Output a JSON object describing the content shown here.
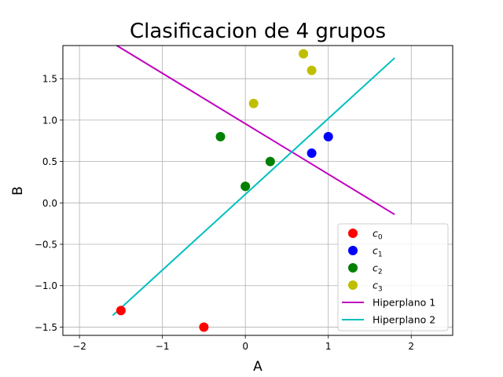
{
  "chart_data": {
    "type": "scatter",
    "title": "Clasificacion de 4 grupos",
    "xlabel": "A",
    "ylabel": "B",
    "xlim": [
      -2.2,
      2.5
    ],
    "ylim": [
      -1.6,
      1.9
    ],
    "xticks": [
      -2,
      -1,
      0,
      1,
      2
    ],
    "xtick_labels": [
      "−2",
      "−1",
      "0",
      "1",
      "2"
    ],
    "yticks": [
      -1.5,
      -1.0,
      -0.5,
      0.0,
      0.5,
      1.0,
      1.5
    ],
    "ytick_labels": [
      "−1.5",
      "−1.0",
      "−0.5",
      "0.0",
      "0.5",
      "1.0",
      "1.5"
    ],
    "grid": true,
    "legend_position": "lower-right",
    "series": [
      {
        "name": "c",
        "subscript": "0",
        "kind": "points",
        "color": "#ff0000",
        "points": [
          [
            -1.5,
            -1.3
          ],
          [
            -0.5,
            -1.5
          ]
        ]
      },
      {
        "name": "c",
        "subscript": "1",
        "kind": "points",
        "color": "#0000ff",
        "points": [
          [
            0.8,
            0.6
          ],
          [
            1.0,
            0.8
          ]
        ]
      },
      {
        "name": "c",
        "subscript": "2",
        "kind": "points",
        "color": "#008000",
        "points": [
          [
            -0.3,
            0.8
          ],
          [
            0.0,
            0.2
          ],
          [
            0.3,
            0.5
          ]
        ]
      },
      {
        "name": "c",
        "subscript": "3",
        "kind": "points",
        "color": "#bfbf00",
        "points": [
          [
            0.1,
            1.2
          ],
          [
            0.7,
            1.8
          ],
          [
            0.8,
            1.6
          ]
        ]
      },
      {
        "name": "Hiperplano 1",
        "kind": "line",
        "color": "#bf00bf",
        "points": [
          [
            -1.55,
            1.9
          ],
          [
            1.8,
            -0.14
          ]
        ]
      },
      {
        "name": "Hiperplano 2",
        "kind": "line",
        "color": "#00bfbf",
        "points": [
          [
            -1.6,
            -1.36
          ],
          [
            1.8,
            1.75
          ]
        ]
      }
    ]
  }
}
